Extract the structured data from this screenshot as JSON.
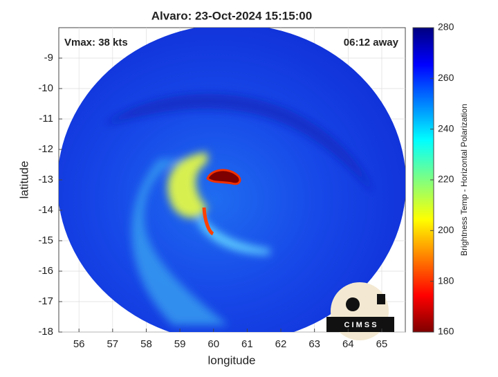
{
  "chart_data": {
    "type": "image",
    "title": "Alvaro: 23-Oct-2024 15:15:00",
    "annotations": [
      "Vmax: 38 kts",
      "06:12 away"
    ],
    "xlabel": "longitude",
    "ylabel": "latitude",
    "xlim": [
      55.4,
      65.7
    ],
    "ylim": [
      -18,
      -8
    ],
    "xticks": [
      56,
      57,
      58,
      59,
      60,
      61,
      62,
      63,
      64,
      65
    ],
    "yticks": [
      -18,
      -17,
      -16,
      -15,
      -14,
      -13,
      -12,
      -11,
      -10,
      -9
    ],
    "grid": true,
    "colorbar": {
      "label": "Brightness Temp - Horizontal Polarization",
      "lim": [
        160,
        280
      ],
      "ticks": [
        160,
        180,
        200,
        220,
        240,
        260,
        280
      ]
    },
    "logo": "C I M S S"
  }
}
